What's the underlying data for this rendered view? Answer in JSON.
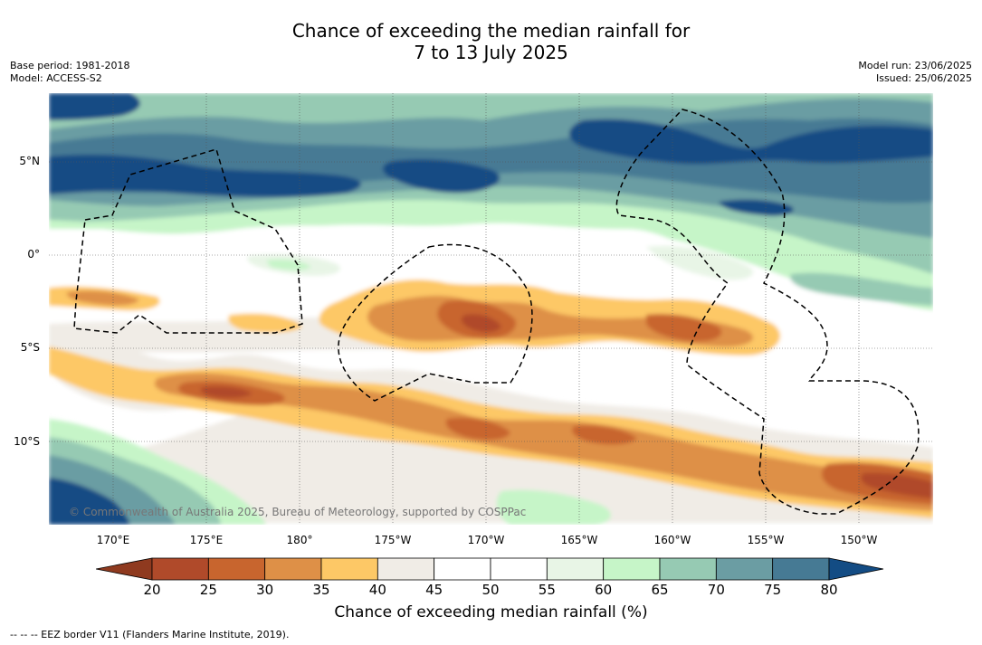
{
  "title_line1": "Chance of exceeding the median rainfall for",
  "title_line2": "7 to 13 July 2025",
  "meta_left": [
    "Base period: 1981-2018",
    "Model: ACCESS-S2"
  ],
  "meta_right": [
    "Model run: 23/06/2025",
    "Issued: 25/06/2025"
  ],
  "copyright": "© Commonwealth of Australia 2025, Bureau of Meteorology, supported by COSPPac",
  "lat_labels": [
    "5°N",
    "0°",
    "5°S",
    "10°S"
  ],
  "lon_labels": [
    "170°E",
    "175°E",
    "180°",
    "175°W",
    "170°W",
    "165°W",
    "160°W",
    "155°W",
    "150°W"
  ],
  "colorbar": {
    "ticks": [
      "20",
      "25",
      "30",
      "35",
      "40",
      "45",
      "50",
      "55",
      "60",
      "65",
      "70",
      "75",
      "80"
    ],
    "colors": [
      "#8f3a1f",
      "#b04a2a",
      "#c8652e",
      "#de9047",
      "#fdc866",
      "#f0ece6",
      "#ffffff",
      "#ffffff",
      "#e8f5e6",
      "#c6f5c8",
      "#96cab3",
      "#6b9da3",
      "#467a94",
      "#134c84"
    ],
    "label": "Chance of exceeding median rainfall (%)"
  },
  "footnote": "-- -- -- EEZ border V11 (Flanders Marine Institute, 2019)."
}
